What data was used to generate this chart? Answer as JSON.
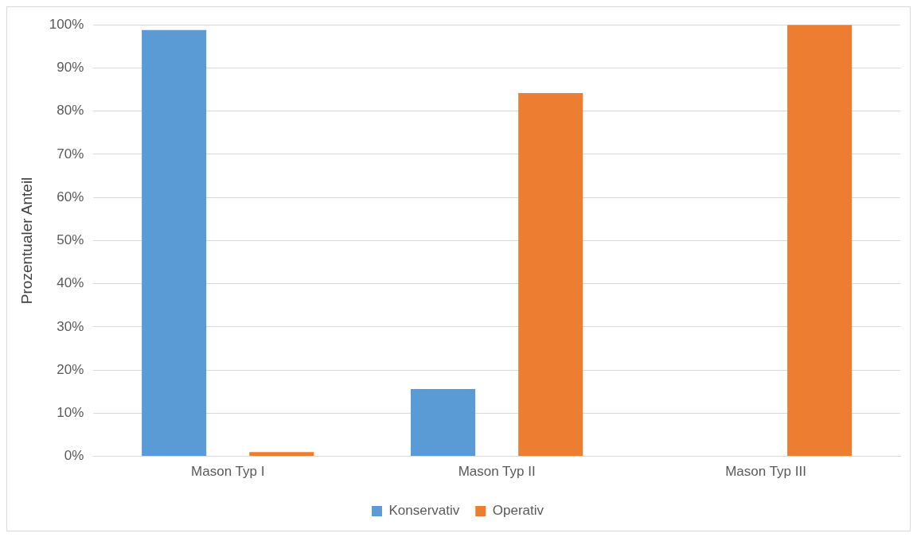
{
  "chart_data": {
    "type": "bar",
    "ylabel": "Prozentualer Anteil",
    "categories": [
      "Mason Typ I",
      "Mason Typ II",
      "Mason Typ III"
    ],
    "series": [
      {
        "name": "Konservativ",
        "color": "#5b9bd5",
        "values": [
          98.8,
          15.6,
          0
        ]
      },
      {
        "name": "Operativ",
        "color": "#ed7d31",
        "values": [
          1,
          84.2,
          100
        ]
      }
    ],
    "ylim": [
      0,
      100
    ],
    "yticks": [
      {
        "value": 0,
        "label": "0%"
      },
      {
        "value": 10,
        "label": "10%"
      },
      {
        "value": 20,
        "label": "20%"
      },
      {
        "value": 30,
        "label": "30%"
      },
      {
        "value": 40,
        "label": "40%"
      },
      {
        "value": 50,
        "label": "50%"
      },
      {
        "value": 60,
        "label": "60%"
      },
      {
        "value": 70,
        "label": "70%"
      },
      {
        "value": 80,
        "label": "80%"
      },
      {
        "value": 90,
        "label": "90%"
      },
      {
        "value": 100,
        "label": "100%"
      }
    ],
    "grid": "y",
    "legend": "bottom"
  }
}
